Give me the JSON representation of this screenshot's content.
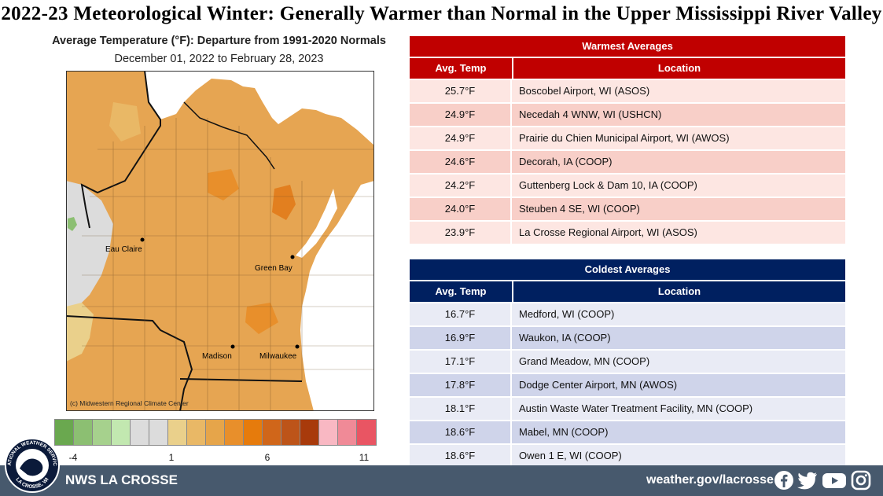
{
  "title": "2022-23  Meteorological Winter: Generally Warmer than Normal in the Upper Mississippi River Valley",
  "map": {
    "title": "Average Temperature (°F): Departure from 1991-2020 Normals",
    "subtitle": "December 01, 2022 to February 28, 2023",
    "credit": "(c) Midwestern Regional Climate Center",
    "cities": {
      "eau_claire": "Eau Claire",
      "green_bay": "Green Bay",
      "madison": "Madison",
      "milwaukee": "Milwaukee"
    },
    "legend": {
      "colors": [
        "#6aa84f",
        "#8cbf72",
        "#a6d18d",
        "#c2e8b0",
        "#dcdcdc",
        "#dcdcdc",
        "#ead08b",
        "#e9b866",
        "#e6a54a",
        "#e88f2b",
        "#e67b0c",
        "#d0661a",
        "#bd5419",
        "#a83a0b",
        "#f9b8c3",
        "#f08a97",
        "#e95563"
      ],
      "labels": [
        "-4",
        "1",
        "6",
        "11"
      ]
    }
  },
  "warmest": {
    "title": "Warmest  Averages",
    "col_temp": "Avg. Temp",
    "col_location": "Location",
    "header_color": "#c00000",
    "row_colors": [
      "#fde6e2",
      "#f8cfc8"
    ],
    "rows": [
      {
        "temp": "25.7°F",
        "location": "Boscobel  Airport,  WI (ASOS)"
      },
      {
        "temp": "24.9°F",
        "location": "Necedah 4 WNW,  WI (USHCN)"
      },
      {
        "temp": "24.9°F",
        "location": "Prairie du Chien Municipal Airport,  WI (AWOS)"
      },
      {
        "temp": "24.6°F",
        "location": "Decorah, IA (COOP)"
      },
      {
        "temp": "24.2°F",
        "location": "Guttenberg  Lock & Dam 10, IA (COOP)"
      },
      {
        "temp": "24.0°F",
        "location": "Steuben  4 SE, WI  (COOP)"
      },
      {
        "temp": "23.9°F",
        "location": "La Crosse Regional Airport,  WI (ASOS)"
      }
    ]
  },
  "coldest": {
    "title": "Coldest Averages",
    "col_temp": "Avg. Temp",
    "col_location": "Location",
    "header_color": "#002060",
    "row_colors": [
      "#e9ebf5",
      "#cfd4ea"
    ],
    "rows": [
      {
        "temp": "16.7°F",
        "location": "Medford,  WI (COOP)"
      },
      {
        "temp": "16.9°F",
        "location": "Waukon,  IA (COOP)"
      },
      {
        "temp": "17.1°F",
        "location": "Grand Meadow,  MN (COOP)"
      },
      {
        "temp": "17.8°F",
        "location": "Dodge Center Airport,  MN (AWOS)"
      },
      {
        "temp": "18.1°F",
        "location": "Austin Waste Water Treatment  Facility, MN (COOP)"
      },
      {
        "temp": "18.6°F",
        "location": "Mabel, MN (COOP)"
      },
      {
        "temp": "18.6°F",
        "location": "Owen 1 E, WI (COOP)"
      }
    ]
  },
  "footer": {
    "org": "NWS LA CROSSE",
    "url": "weather.gov/lacrosse",
    "logo_top": "NATIONAL WEATHER SERVICE",
    "logo_bottom": "LA CROSSE, WI",
    "social_icons": [
      "facebook-icon",
      "twitter-icon",
      "youtube-icon",
      "instagram-icon"
    ]
  }
}
